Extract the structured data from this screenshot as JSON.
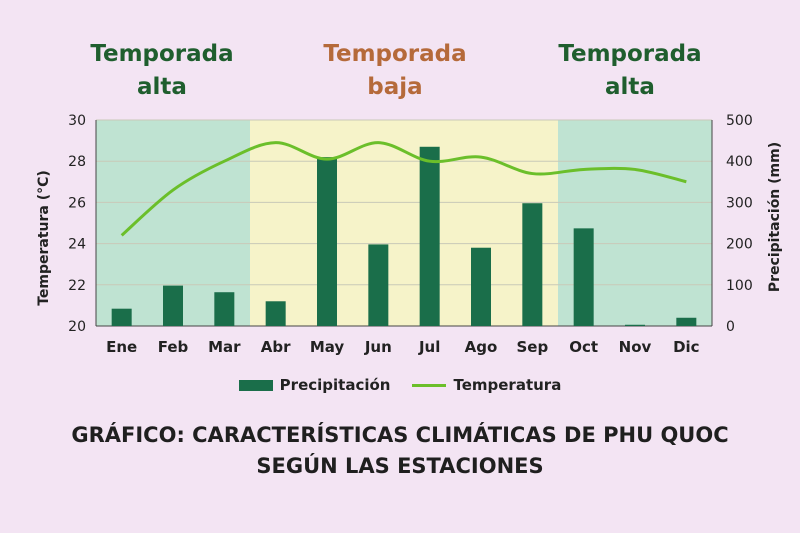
{
  "seasons": [
    {
      "line1": "Temporada",
      "line2": "alta",
      "color": "#1f5e2e"
    },
    {
      "line1": "Temporada",
      "line2": "baja",
      "color": "#b56a3a"
    },
    {
      "line1": "Temporada",
      "line2": "alta",
      "color": "#1f5e2e"
    }
  ],
  "legend": {
    "precip": "Precipitación",
    "temp": "Temperatura"
  },
  "caption": {
    "line1": "GRÁFICO: CARACTERÍSTICAS CLIMÁTICAS DE PHU QUOC",
    "line2": "SEGÚN LAS ESTACIONES"
  },
  "chart_data": {
    "type": "bar",
    "categories": [
      "Ene",
      "Feb",
      "Mar",
      "Abr",
      "May",
      "Jun",
      "Jul",
      "Ago",
      "Sep",
      "Oct",
      "Nov",
      "Dic"
    ],
    "series": [
      {
        "name": "Precipitación",
        "type": "bar",
        "axis": "right",
        "color": "#1a6e4a",
        "values": [
          42,
          98,
          82,
          60,
          410,
          198,
          435,
          190,
          298,
          237,
          3,
          20
        ]
      },
      {
        "name": "Temperatura",
        "type": "line",
        "axis": "left",
        "color": "#6bbf2a",
        "values": [
          24.4,
          26.6,
          28.0,
          28.9,
          28.1,
          28.9,
          28.0,
          28.2,
          27.4,
          27.6,
          27.6,
          27.0
        ]
      }
    ],
    "ylabel": "Temperatura (°C)",
    "ylim": [
      20,
      30
    ],
    "yticks": [
      "20",
      "22",
      "24",
      "26",
      "28",
      "30"
    ],
    "y2label": "Precipitación (mm)",
    "y2lim": [
      0,
      500
    ],
    "y2ticks": [
      "0",
      "100",
      "200",
      "300",
      "400",
      "500"
    ],
    "bands": [
      {
        "from": 0,
        "to": 3,
        "color": "#bfe3d2"
      },
      {
        "from": 3,
        "to": 9,
        "color": "#f6f3c9"
      },
      {
        "from": 9,
        "to": 12,
        "color": "#bfe3d2"
      }
    ],
    "grid": true,
    "legend_position": "bottom"
  }
}
